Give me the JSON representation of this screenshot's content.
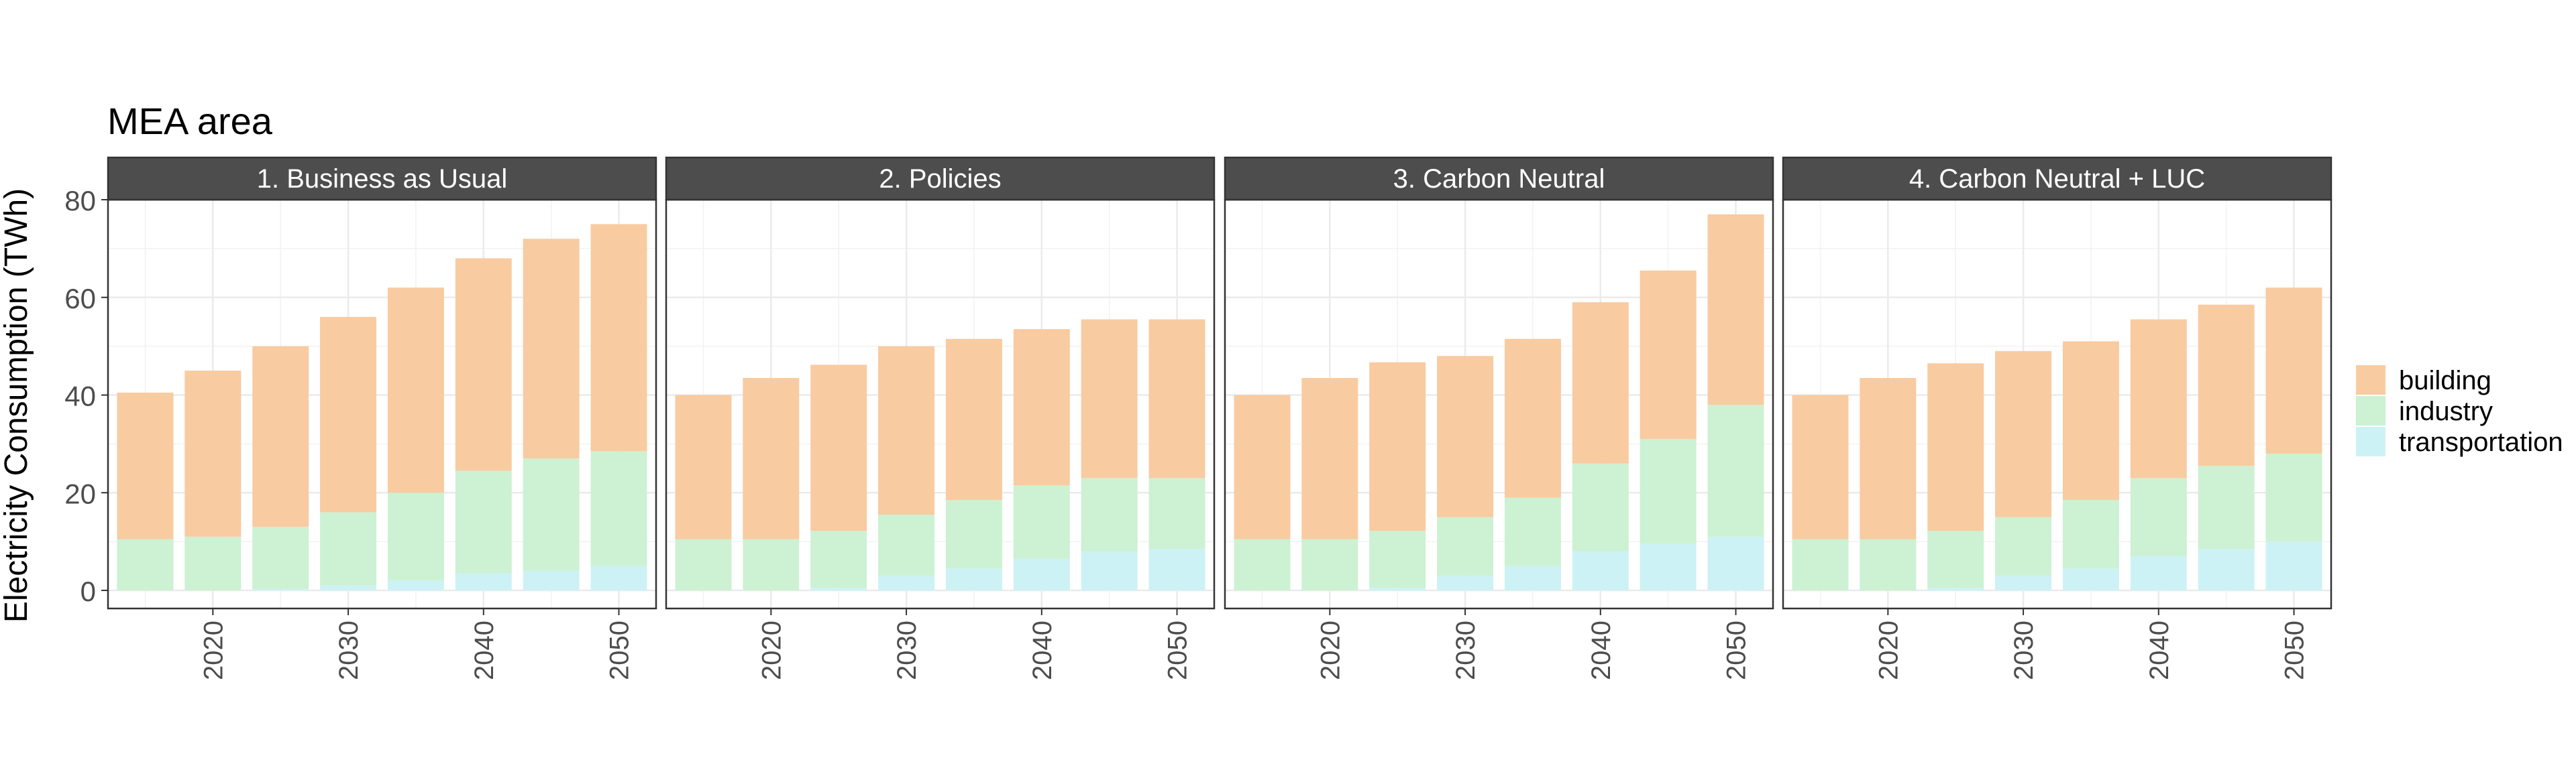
{
  "chart_data": {
    "type": "bar",
    "stacked": true,
    "title": "MEA area",
    "ylabel": "Electricity Consumption (TWh)",
    "xlabel": "",
    "ylim": [
      0,
      80
    ],
    "y_ticks": [
      0,
      20,
      40,
      60,
      80
    ],
    "x": [
      2015,
      2020,
      2025,
      2030,
      2035,
      2040,
      2045,
      2050
    ],
    "x_ticks": [
      2020,
      2030,
      2040,
      2050
    ],
    "grid": true,
    "legend_position": "right",
    "legend": [
      {
        "name": "building",
        "color": "#f9cba1"
      },
      {
        "name": "industry",
        "color": "#cdf1d3"
      },
      {
        "name": "transportation",
        "color": "#cdf2f5"
      }
    ],
    "panels": [
      {
        "title": "1. Business as Usual",
        "series": [
          {
            "name": "transportation",
            "values": [
              0,
              0,
              0.3,
              1.0,
              2.0,
              3.5,
              4.0,
              5.0
            ]
          },
          {
            "name": "industry",
            "values": [
              10.5,
              11.0,
              12.7,
              15.0,
              18.0,
              21.0,
              23.0,
              23.5
            ]
          },
          {
            "name": "building",
            "values": [
              30.0,
              34.0,
              37.0,
              40.0,
              42.0,
              43.5,
              45.0,
              46.5
            ]
          }
        ]
      },
      {
        "title": "2. Policies",
        "series": [
          {
            "name": "transportation",
            "values": [
              0,
              0,
              0.5,
              3.0,
              4.5,
              6.5,
              8.0,
              8.5
            ]
          },
          {
            "name": "industry",
            "values": [
              10.5,
              10.5,
              11.7,
              12.5,
              14.0,
              15.0,
              15.0,
              14.5
            ]
          },
          {
            "name": "building",
            "values": [
              29.5,
              33.0,
              34.0,
              34.5,
              33.0,
              32.0,
              32.5,
              32.5
            ]
          }
        ]
      },
      {
        "title": "3. Carbon Neutral",
        "series": [
          {
            "name": "transportation",
            "values": [
              0,
              0,
              0.5,
              3.0,
              5.0,
              8.0,
              9.5,
              11.0
            ]
          },
          {
            "name": "industry",
            "values": [
              10.5,
              10.5,
              11.7,
              12.0,
              14.0,
              18.0,
              21.5,
              27.0
            ]
          },
          {
            "name": "building",
            "values": [
              29.5,
              33.0,
              34.5,
              33.0,
              32.5,
              33.0,
              34.5,
              39.0
            ]
          }
        ]
      },
      {
        "title": "4. Carbon Neutral + LUC",
        "series": [
          {
            "name": "transportation",
            "values": [
              0,
              0,
              0.5,
              3.0,
              4.5,
              7.0,
              8.5,
              10.0
            ]
          },
          {
            "name": "industry",
            "values": [
              10.5,
              10.5,
              11.7,
              12.0,
              14.0,
              16.0,
              17.0,
              18.0
            ]
          },
          {
            "name": "building",
            "values": [
              29.5,
              33.0,
              34.3,
              34.0,
              32.5,
              32.5,
              33.0,
              34.0
            ]
          }
        ]
      }
    ]
  }
}
